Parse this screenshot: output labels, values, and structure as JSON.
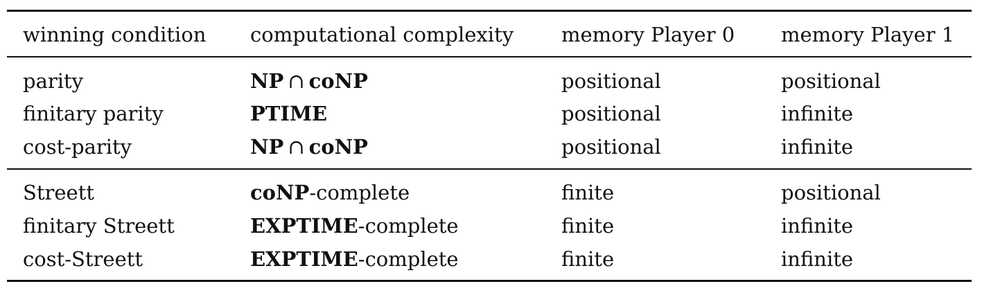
{
  "table": {
    "headers": [
      "winning condition",
      "computational complexity",
      "memory Player 0",
      "memory Player 1"
    ],
    "rows": [
      {
        "condition": "parity",
        "complexity": {
          "bold1": "NP",
          "op": "∩",
          "bold2": "coNP",
          "suffix": ""
        },
        "mem0": "positional",
        "mem1": "positional"
      },
      {
        "condition": "finitary parity",
        "complexity": {
          "bold1": "PTIME",
          "op": "",
          "bold2": "",
          "suffix": ""
        },
        "mem0": "positional",
        "mem1": "infinite"
      },
      {
        "condition": "cost-parity",
        "complexity": {
          "bold1": "NP",
          "op": "∩",
          "bold2": "coNP",
          "suffix": ""
        },
        "mem0": "positional",
        "mem1": "infinite"
      },
      {
        "condition": "Streett",
        "complexity": {
          "bold1": "coNP",
          "op": "",
          "bold2": "",
          "suffix": "-complete"
        },
        "mem0": "finite",
        "mem1": "positional"
      },
      {
        "condition": "finitary Streett",
        "complexity": {
          "bold1": "EXPTIME",
          "op": "",
          "bold2": "",
          "suffix": "-complete"
        },
        "mem0": "finite",
        "mem1": "infinite"
      },
      {
        "condition": "cost-Streett",
        "complexity": {
          "bold1": "EXPTIME",
          "op": "",
          "bold2": "",
          "suffix": "-complete"
        },
        "mem0": "finite",
        "mem1": "infinite"
      }
    ]
  }
}
